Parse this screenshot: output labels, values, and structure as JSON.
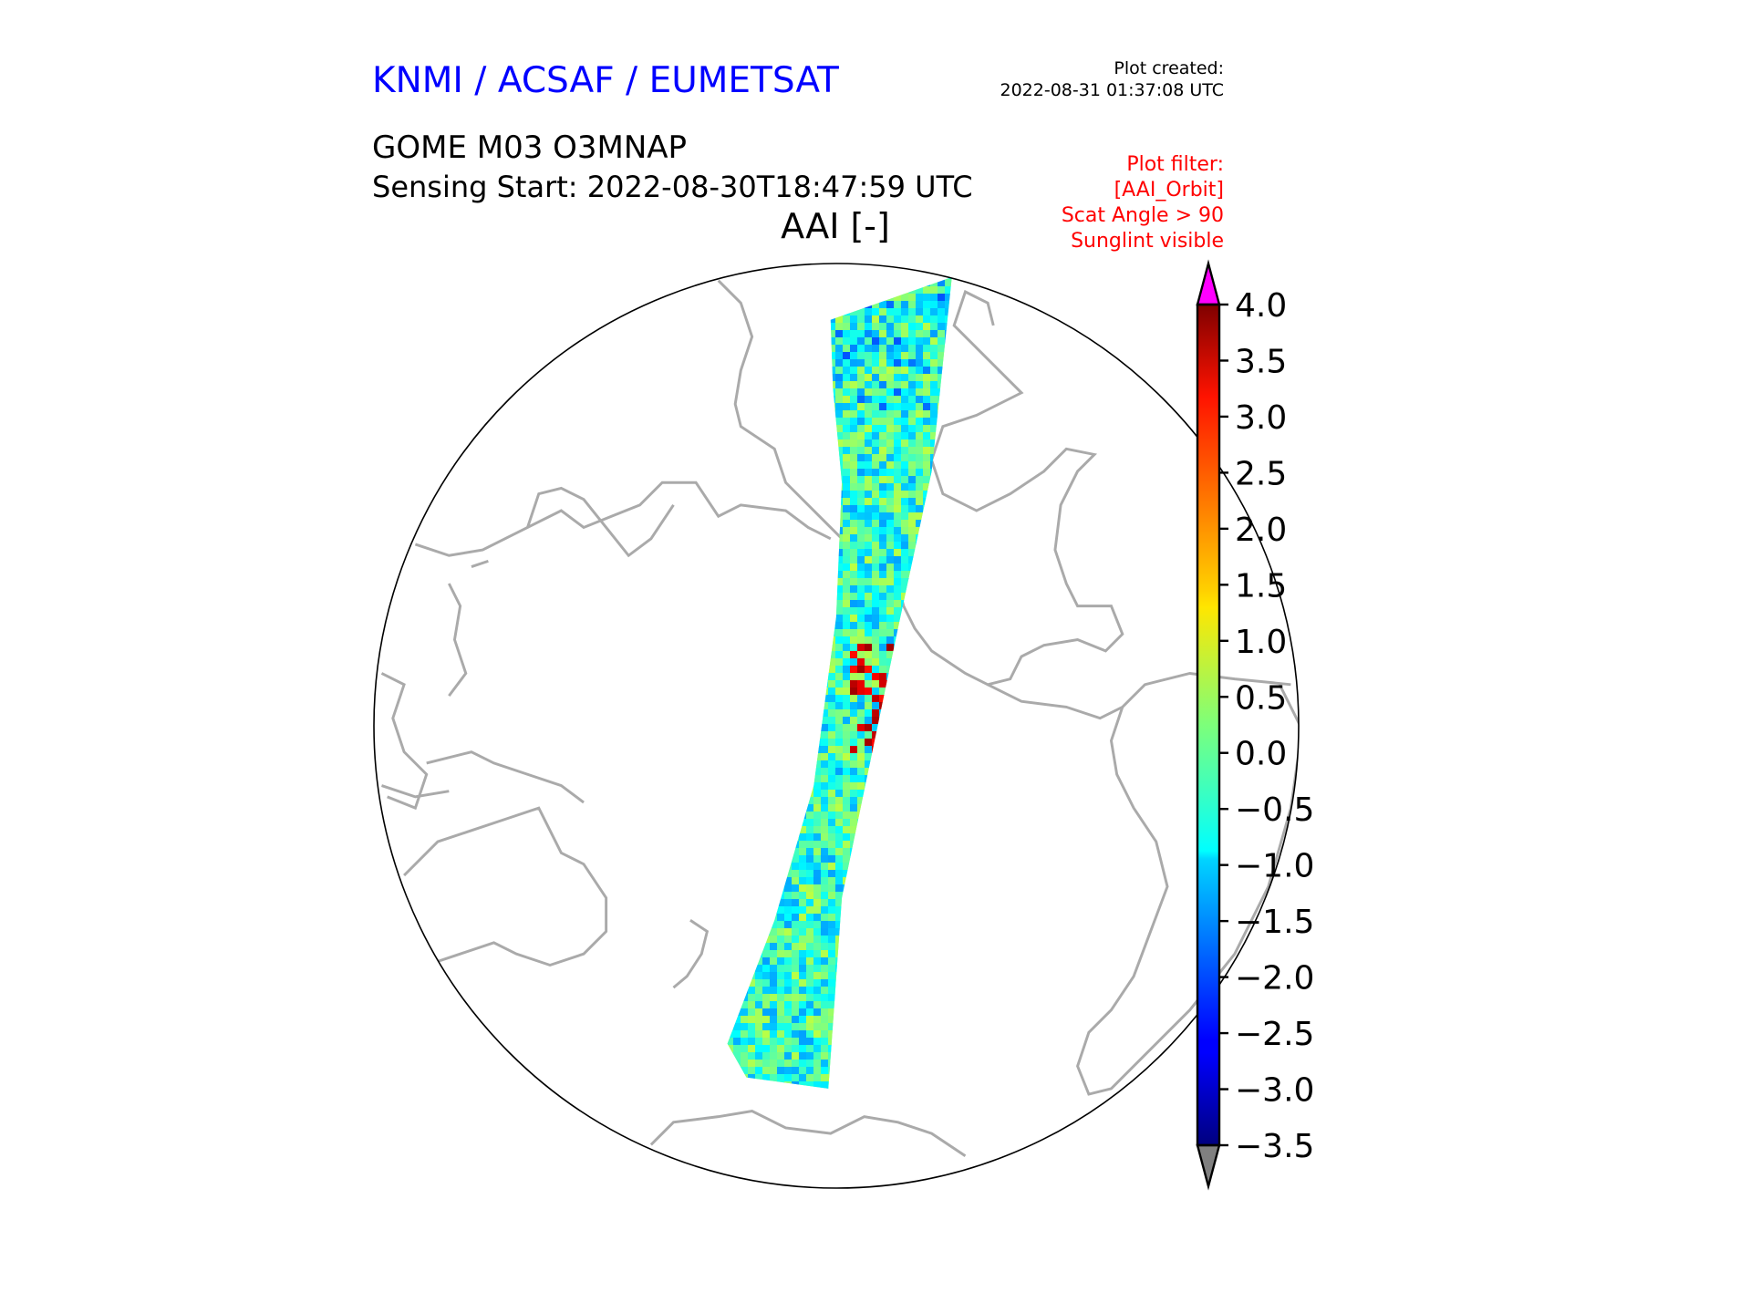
{
  "header": {
    "organization": "KNMI / ACSAF / EUMETSAT",
    "product": "GOME M03 O3MNAP",
    "sensing_start": "Sensing Start: 2022-08-30T18:47:59 UTC",
    "plot_created_label": "Plot created:",
    "plot_created_value": "2022-08-31 01:37:08 UTC"
  },
  "filter": {
    "lines": [
      "Plot filter:",
      "[AAI_Orbit]",
      "Scat Angle > 90",
      "Sunglint visible"
    ],
    "color": "#ff0000"
  },
  "chart_data": {
    "type": "heatmap",
    "title": "AAI [-]",
    "projection": "orthographic globe, Pacific-centred",
    "colormap": "jet",
    "colorbar": {
      "vmin": -3.5,
      "vmax": 4.0,
      "ticks": [
        "4.0",
        "3.5",
        "3.0",
        "2.5",
        "2.0",
        "1.5",
        "1.0",
        "0.5",
        "0.0",
        "−0.5",
        "−1.0",
        "−1.5",
        "−2.0",
        "−2.5",
        "−3.0",
        "−3.5"
      ],
      "over_color": "#ff00ff",
      "under_color": "#808080",
      "extend": "both"
    },
    "coastline_color": "#aaaaaa"
  }
}
